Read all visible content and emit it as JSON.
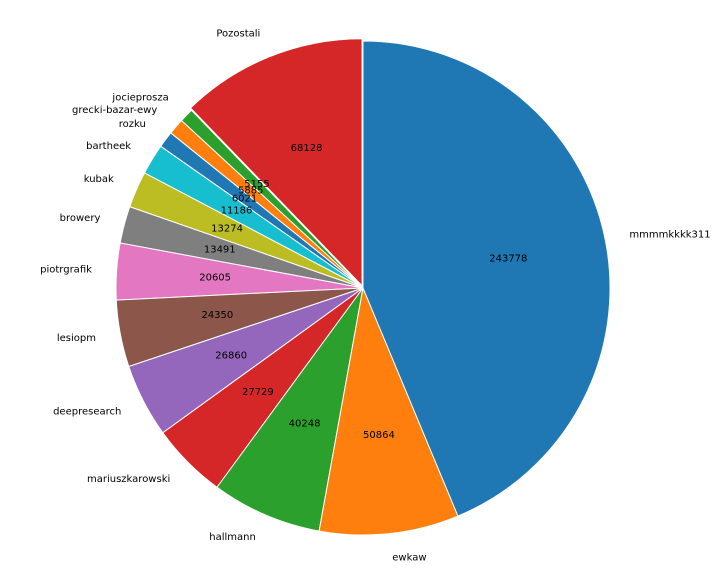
{
  "chart_data": {
    "type": "pie",
    "title": "",
    "start_angle_deg": 90,
    "direction": "counterclockwise",
    "explode": {
      "Pozostali": 0.01
    },
    "slices": [
      {
        "label": "Pozostali",
        "value": 68128,
        "color": "#d62728"
      },
      {
        "label": "jocieprosza",
        "value": 5155,
        "color": "#2ca02c"
      },
      {
        "label": "grecki-bazar-ewy",
        "value": 5885,
        "color": "#ff7f0e"
      },
      {
        "label": "rozku",
        "value": 6021,
        "color": "#1f77b4"
      },
      {
        "label": "bartheek",
        "value": 11186,
        "color": "#17becf"
      },
      {
        "label": "kubak",
        "value": 13274,
        "color": "#bcbd22"
      },
      {
        "label": "browery",
        "value": 13491,
        "color": "#7f7f7f"
      },
      {
        "label": "piotrgrafik",
        "value": 20605,
        "color": "#e377c2"
      },
      {
        "label": "lesiopm",
        "value": 24350,
        "color": "#8c564b"
      },
      {
        "label": "deepresearch",
        "value": 26860,
        "color": "#9467bd"
      },
      {
        "label": "mariuszkarowski",
        "value": 27729,
        "color": "#d62728"
      },
      {
        "label": "hallmann",
        "value": 40248,
        "color": "#2ca02c"
      },
      {
        "label": "ewkaw",
        "value": 50864,
        "color": "#ff7f0e"
      },
      {
        "label": "mmmmkkkk311",
        "value": 243778,
        "color": "#1f77b4"
      }
    ]
  }
}
